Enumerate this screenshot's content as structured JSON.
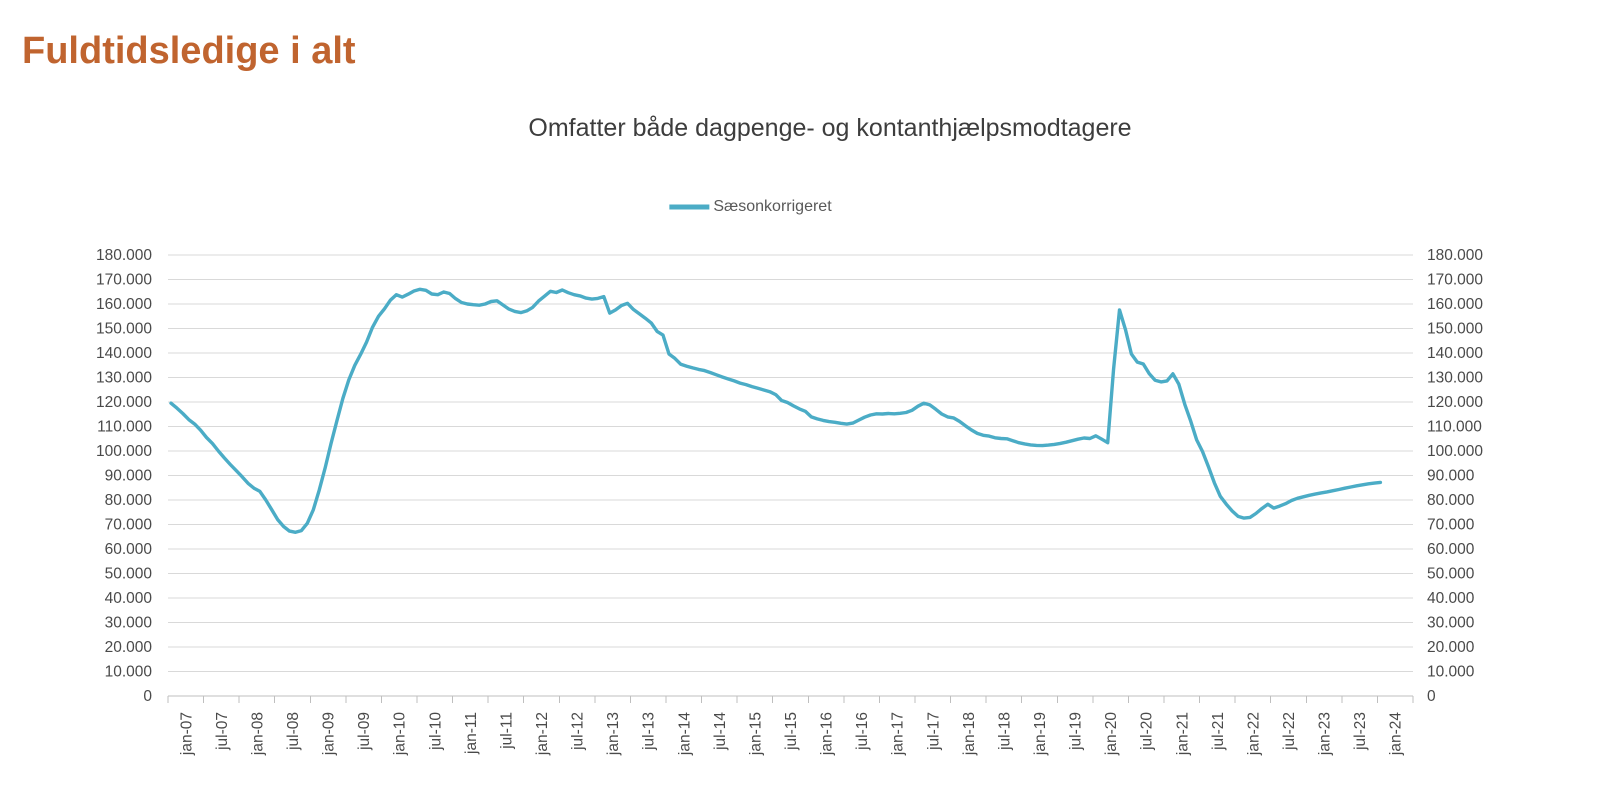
{
  "page": {
    "title": "Fuldtidsledige i alt",
    "title_color": "#C0642F"
  },
  "chart": {
    "subtitle": "Omfatter både dagpenge- og kontanthjælpsmodtagere",
    "legend": {
      "label": "Sæsonkorrigeret",
      "color": "#4BACC6"
    }
  },
  "chart_data": {
    "type": "line",
    "title": "Omfatter både dagpenge- og kontanthjælpsmodtagere",
    "legend_position": "top-center",
    "grid": "horizontal-only",
    "y_axis": {
      "min": 0,
      "max": 180000,
      "step": 10000,
      "sides": "both",
      "format": "thousands-dot",
      "tick_labels": [
        "0",
        "10.000",
        "20.000",
        "30.000",
        "40.000",
        "50.000",
        "60.000",
        "70.000",
        "80.000",
        "90.000",
        "100.000",
        "110.000",
        "120.000",
        "130.000",
        "140.000",
        "150.000",
        "160.000",
        "170.000",
        "180.000"
      ]
    },
    "x_axis": {
      "frequency": "monthly",
      "start": "jan-07",
      "end": "jan-24",
      "tick_labels": [
        "jan-07",
        "jul-07",
        "jan-08",
        "jul-08",
        "jan-09",
        "jul-09",
        "jan-10",
        "jul-10",
        "jan-11",
        "jul-11",
        "jan-12",
        "jul-12",
        "jan-13",
        "jul-13",
        "jan-14",
        "jul-14",
        "jan-15",
        "jul-15",
        "jan-16",
        "jul-16",
        "jan-17",
        "jul-17",
        "jan-18",
        "jul-18",
        "jan-19",
        "jul-19",
        "jan-20",
        "jul-20",
        "jan-21",
        "jul-21",
        "jan-22",
        "jul-22",
        "jan-23",
        "jul-23",
        "jan-24"
      ]
    },
    "series": [
      {
        "name": "Sæsonkorrigeret",
        "color": "#4BACC6",
        "values": [
          119500,
          117500,
          115300,
          112800,
          111000,
          108500,
          105500,
          103000,
          100000,
          97200,
          94500,
          92000,
          89500,
          86800,
          84800,
          83500,
          80000,
          76000,
          72000,
          69200,
          67300,
          66800,
          67500,
          70500,
          76000,
          84000,
          93000,
          103000,
          112500,
          121500,
          129000,
          135000,
          139500,
          144500,
          150500,
          155000,
          158000,
          161500,
          163800,
          162800,
          164000,
          165300,
          166000,
          165600,
          164100,
          163800,
          164900,
          164300,
          162200,
          160600,
          160000,
          159700,
          159500,
          160000,
          161000,
          161300,
          159600,
          157900,
          157000,
          156500,
          157200,
          158600,
          161200,
          163200,
          165200,
          164700,
          165700,
          164600,
          163800,
          163300,
          162400,
          162000,
          162300,
          163000,
          156300,
          157600,
          159400,
          160300,
          157800,
          156000,
          154200,
          152300,
          148800,
          147300,
          139600,
          137800,
          135400,
          134600,
          133900,
          133300,
          132800,
          132000,
          131100,
          130200,
          129400,
          128600,
          127700,
          127100,
          126300,
          125600,
          124900,
          124200,
          123000,
          120600,
          119800,
          118400,
          117200,
          116200,
          113900,
          113100,
          112500,
          112000,
          111700,
          111300,
          111000,
          111400,
          112600,
          113800,
          114700,
          115200,
          115100,
          115300,
          115200,
          115400,
          115700,
          116600,
          118300,
          119500,
          118800,
          117000,
          115100,
          113900,
          113500,
          112100,
          110300,
          108600,
          107200,
          106400,
          106100,
          105400,
          105100,
          105000,
          104200,
          103400,
          102900,
          102500,
          102300,
          102200,
          102400,
          102700,
          103100,
          103600,
          104200,
          104800,
          105300,
          105100,
          106200,
          104800,
          103400,
          133500,
          157600,
          149500,
          139600,
          136300,
          135500,
          131600,
          128900,
          128200,
          128600,
          131500,
          127300,
          119000,
          112200,
          104600,
          99800,
          93500,
          87000,
          81500,
          78300,
          75500,
          73300,
          72600,
          72900,
          74500,
          76500,
          78300,
          76700,
          77500,
          78500,
          79800,
          80700,
          81300,
          81900,
          82400,
          82900,
          83300,
          83800,
          84300,
          84800,
          85300,
          85800,
          86200,
          86600,
          86900,
          87200
        ]
      }
    ]
  }
}
